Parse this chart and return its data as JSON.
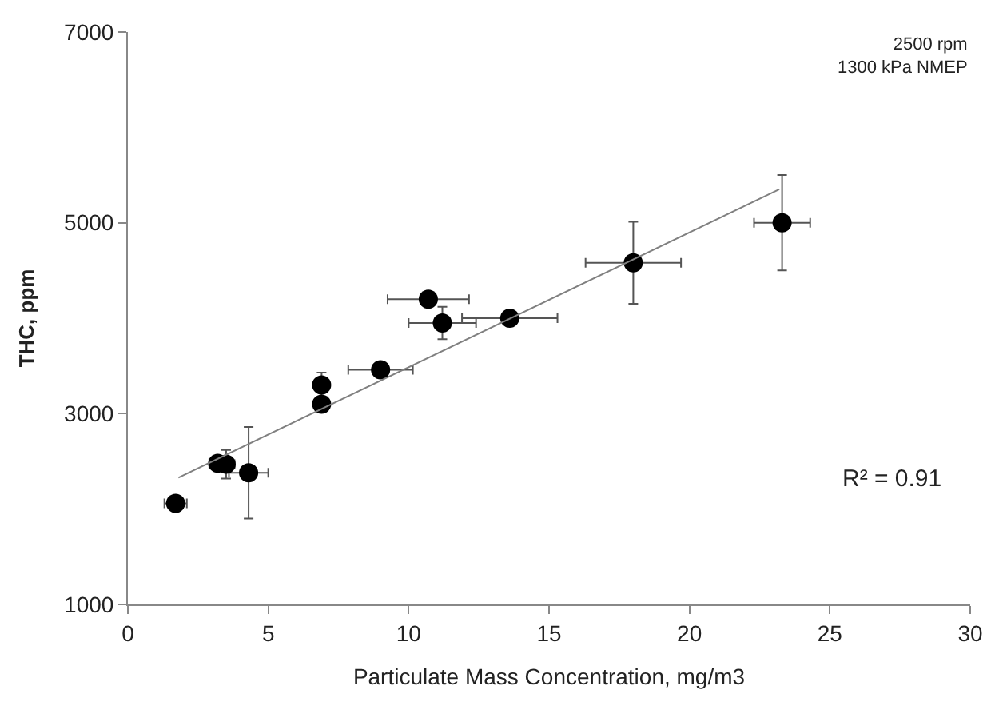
{
  "chart_data": {
    "type": "scatter",
    "marker": "circle",
    "xlabel": "Particulate Mass Concentration, mg/m3",
    "ylabel": "THC, ppm",
    "xlim": [
      0,
      30
    ],
    "xticks": [
      0,
      5,
      10,
      15,
      20,
      25,
      30
    ],
    "ylim": [
      1000,
      7000
    ],
    "yticks": [
      1000,
      3000,
      5000,
      7000
    ],
    "series": [
      {
        "color": "#000000",
        "x": [
          1.7,
          3.2,
          3.5,
          4.3,
          6.9,
          6.9,
          9.0,
          10.7,
          11.2,
          13.6,
          18.0,
          23.3
        ],
        "values": [
          2060,
          2480,
          2470,
          2380,
          3100,
          3300,
          3460,
          4200,
          3950,
          4000,
          4580,
          5000
        ],
        "errors": [
          null,
          null,
          150,
          480,
          null,
          130,
          null,
          null,
          170,
          null,
          430,
          500
        ],
        "xerrors": [
          0.4,
          0.3,
          0.3,
          0.7,
          null,
          null,
          1.15,
          1.45,
          1.2,
          1.7,
          1.7,
          1.0
        ]
      },
      {
        "type": "line",
        "marker": "none",
        "color": "#808080",
        "x": [
          1.8,
          23.2
        ],
        "values": [
          2330,
          5350
        ]
      }
    ],
    "annotations": [
      "2500 rpm\n1300 kPa NMEP",
      "R² = 0.91"
    ]
  }
}
